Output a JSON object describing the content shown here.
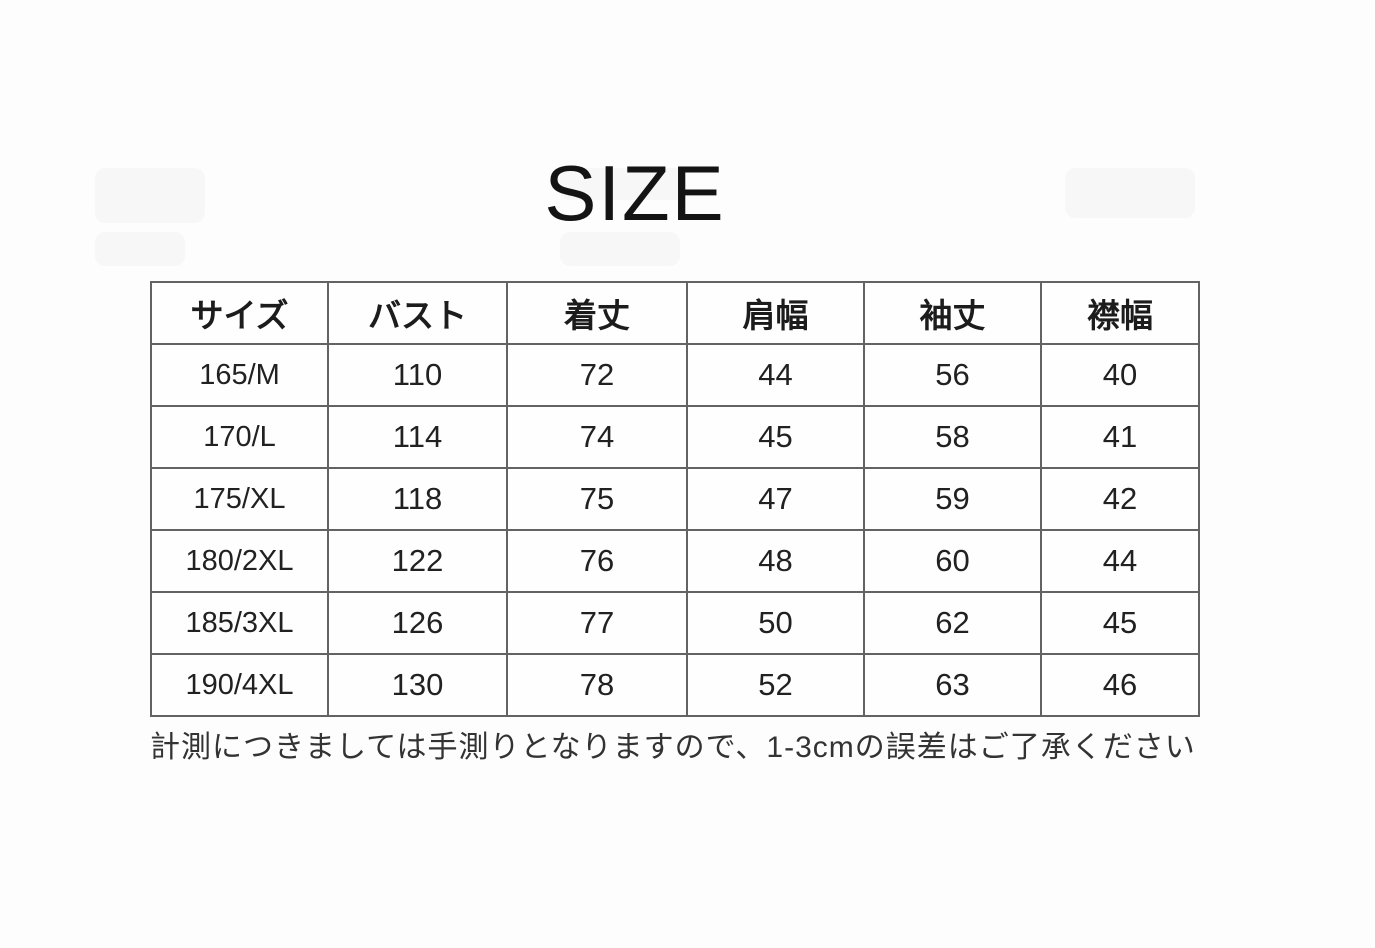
{
  "page": {
    "title": "SIZE",
    "note": "計測につきましては手測りとなりますので、1-3cmの誤差はご了承ください"
  },
  "table": {
    "columns": [
      "サイズ",
      "バスト",
      "着丈",
      "肩幅",
      "袖丈",
      "襟幅"
    ],
    "rows": [
      [
        "165/M",
        "110",
        "72",
        "44",
        "56",
        "40"
      ],
      [
        "170/L",
        "114",
        "74",
        "45",
        "58",
        "41"
      ],
      [
        "175/XL",
        "118",
        "75",
        "47",
        "59",
        "42"
      ],
      [
        "180/2XL",
        "122",
        "76",
        "48",
        "60",
        "44"
      ],
      [
        "185/3XL",
        "126",
        "77",
        "50",
        "62",
        "45"
      ],
      [
        "190/4XL",
        "130",
        "78",
        "52",
        "63",
        "46"
      ]
    ]
  },
  "colors": {
    "background": "#fdfdfd",
    "table_border": "#636363",
    "text": "#1f1f1f"
  }
}
